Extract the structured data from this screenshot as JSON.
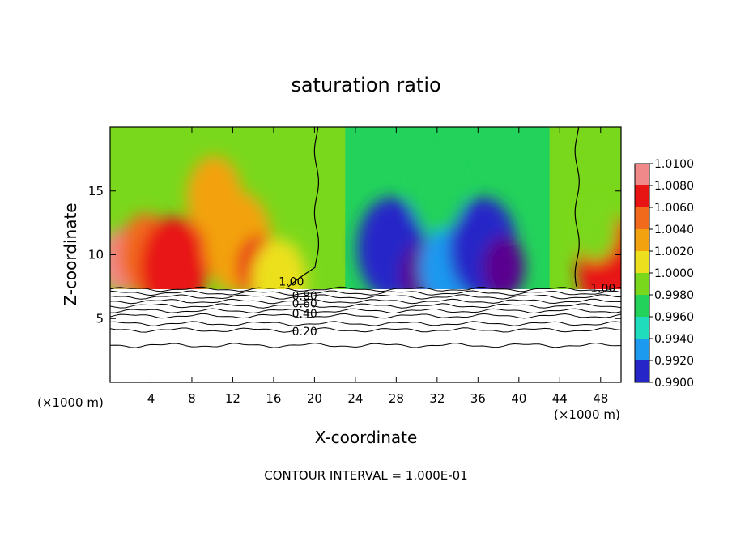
{
  "chart_data": {
    "type": "heatmap",
    "title": "saturation ratio",
    "xlabel": "X-coordinate",
    "ylabel": "Z-coordinate",
    "x_unit_left": "(×1000 m)",
    "x_unit_right": "(×1000 m)",
    "footer": "CONTOUR INTERVAL = 1.000E-01",
    "xlim": [
      0,
      50
    ],
    "ylim": [
      0,
      20
    ],
    "x_ticks": [
      4,
      8,
      12,
      16,
      20,
      24,
      28,
      32,
      36,
      40,
      44,
      48
    ],
    "x_tick_labels": [
      "4",
      "8",
      "12",
      "16",
      "20",
      "24",
      "28",
      "32",
      "36",
      "40",
      "44",
      "48"
    ],
    "y_ticks": [
      5,
      10,
      15
    ],
    "y_tick_labels": [
      "5",
      "10",
      "15"
    ],
    "colorbar": {
      "min": 0.99,
      "max": 1.01,
      "labels": [
        "1.0100",
        "1.0080",
        "1.0060",
        "1.0040",
        "1.0020",
        "1.0000",
        "0.9980",
        "0.9960",
        "0.9940",
        "0.9920",
        "0.9900"
      ],
      "values": [
        1.01,
        1.008,
        1.006,
        1.004,
        1.002,
        1.0,
        0.998,
        0.996,
        0.994,
        0.992,
        0.99
      ],
      "colors": [
        "#f08a8a",
        "#e81414",
        "#f26a1c",
        "#f3a20f",
        "#ece01e",
        "#7ad81c",
        "#23d25a",
        "#1edcbc",
        "#1b9af0",
        "#2626c8",
        "#5a0090"
      ]
    },
    "contour_labels": [
      {
        "text": "1.00",
        "x": 16.5,
        "y": 7.9
      },
      {
        "text": "1.00",
        "x": 47.0,
        "y": 7.4
      },
      {
        "text": "0.80",
        "x": 17.8,
        "y": 6.8
      },
      {
        "text": "0.60",
        "x": 17.8,
        "y": 6.2
      },
      {
        "text": "0.40",
        "x": 17.8,
        "y": 5.4
      },
      {
        "text": "0.20",
        "x": 17.8,
        "y": 4.0
      }
    ],
    "contour_levels": [
      1.0,
      0.9,
      0.8,
      0.7,
      0.6,
      0.5,
      0.4,
      0.3,
      0.2,
      0.1
    ],
    "contour_heights": [
      7.3,
      7.0,
      6.7,
      6.35,
      6.0,
      5.6,
      5.2,
      4.6,
      4.1,
      2.9
    ],
    "field_base": 7.3,
    "field_top": 20,
    "hotspots": [
      {
        "x": 1.0,
        "z": 9.5,
        "value": 1.0095
      },
      {
        "x": 3.5,
        "z": 10.0,
        "value": 1.006
      },
      {
        "x": 6.2,
        "z": 9.0,
        "value": 1.008
      },
      {
        "x": 8.5,
        "z": 10.5,
        "value": 1.0075
      },
      {
        "x": 10.2,
        "z": 14.5,
        "value": 1.004
      },
      {
        "x": 12.5,
        "z": 11.0,
        "value": 1.0045
      },
      {
        "x": 14.5,
        "z": 9.0,
        "value": 1.0075
      },
      {
        "x": 16.5,
        "z": 8.0,
        "value": 1.0025
      },
      {
        "x": 27.5,
        "z": 10.5,
        "value": 0.9915
      },
      {
        "x": 30.5,
        "z": 8.5,
        "value": 0.9905
      },
      {
        "x": 33.0,
        "z": 9.0,
        "value": 0.993
      },
      {
        "x": 36.5,
        "z": 10.5,
        "value": 0.9915
      },
      {
        "x": 38.5,
        "z": 9.0,
        "value": 0.9905
      },
      {
        "x": 32.0,
        "z": 15.0,
        "value": 0.997
      },
      {
        "x": 49.0,
        "z": 9.0,
        "value": 1.008
      },
      {
        "x": 47.5,
        "z": 12.0,
        "value": 1.001
      }
    ]
  }
}
